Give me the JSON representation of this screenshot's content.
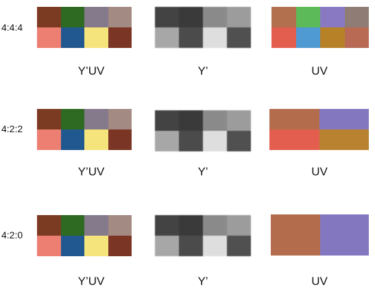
{
  "rows": [
    {
      "label": "4:4:4",
      "captions": [
        "Y’UV",
        "Y’",
        "UV"
      ],
      "yuv": [
        "#7b3a22",
        "#2e6a22",
        "#857a8c",
        "#a38b83",
        "#ec7f72",
        "#21588f",
        "#f5e37b",
        "#7b3525"
      ],
      "y": [
        "#434343",
        "#3a3a3a",
        "#8a8a8a",
        "#9c9c9c",
        "#a7a7a7",
        "#4b4b4b",
        "#dedede",
        "#505050"
      ],
      "uv": [
        "#b3704f",
        "#5cba58",
        "#8879c2",
        "#8f7c75",
        "#e35e4f",
        "#4f9ad3",
        "#b78128",
        "#b86a55"
      ]
    },
    {
      "label": "4:2:2",
      "captions": [
        "Y’UV",
        "Y’",
        "UV"
      ],
      "yuv": [
        "#7b3a22",
        "#2e6a22",
        "#857a8c",
        "#a38b83",
        "#ec7f72",
        "#21588f",
        "#f5e37b",
        "#7b3525"
      ],
      "y": [
        "#434343",
        "#3a3a3a",
        "#8a8a8a",
        "#9c9c9c",
        "#a7a7a7",
        "#4b4b4b",
        "#dedede",
        "#505050"
      ],
      "uv": [
        "#b36d4d",
        "#8377c0",
        "#e35e4f",
        "#b98230"
      ]
    },
    {
      "label": "4:2:0",
      "captions": [
        "Y’UV",
        "Y’",
        "UV"
      ],
      "yuv": [
        "#7b3a22",
        "#2e6a22",
        "#857a8c",
        "#a38b83",
        "#ec7f72",
        "#21588f",
        "#f5e37b",
        "#7b3525"
      ],
      "y": [
        "#434343",
        "#3a3a3a",
        "#8a8a8a",
        "#9c9c9c",
        "#a7a7a7",
        "#4b4b4b",
        "#dedede",
        "#505050"
      ],
      "uv": [
        "#b36d4d",
        "#8377c0"
      ]
    }
  ]
}
